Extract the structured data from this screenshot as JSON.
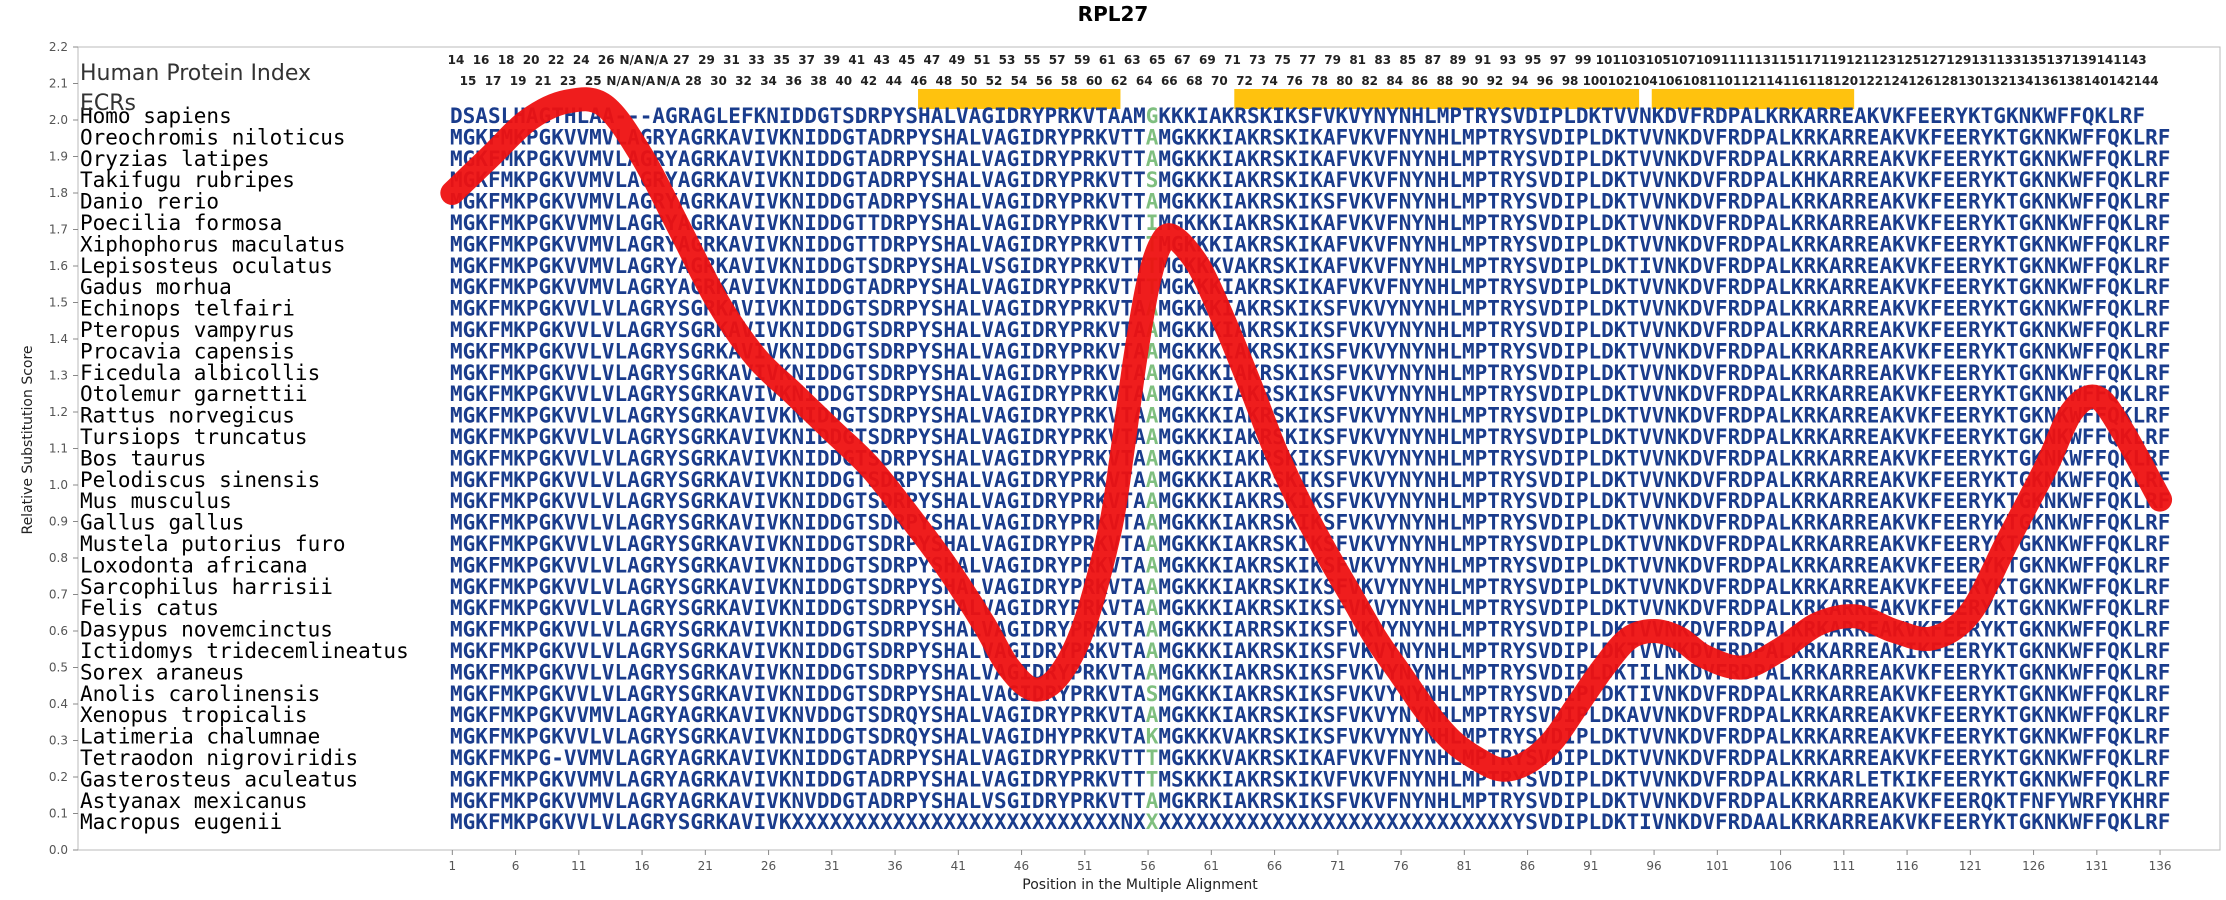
{
  "chart_data": {
    "type": "line",
    "title": "RPL27",
    "xlabel": "Position in the Multiple Alignment",
    "ylabel": "Relative Substitution Score",
    "ylim": [
      0,
      2.2
    ],
    "xlim": [
      1,
      136
    ],
    "y_ticks": [
      "0.0",
      "0.1",
      "0.2",
      "0.3",
      "0.4",
      "0.5",
      "0.6",
      "0.7",
      "0.8",
      "0.9",
      "1.0",
      "1.1",
      "1.2",
      "1.3",
      "1.4",
      "1.5",
      "1.6",
      "1.7",
      "1.8",
      "1.9",
      "2.0",
      "2.1",
      "2.2"
    ],
    "x_ticks": [
      1,
      6,
      11,
      16,
      21,
      26,
      31,
      36,
      41,
      46,
      51,
      56,
      61,
      66,
      71,
      76,
      81,
      86,
      91,
      96,
      101,
      106,
      111,
      116,
      121,
      126,
      131,
      136
    ],
    "series": [
      {
        "color": "#ee1111",
        "x": [
          1,
          4,
          7,
          10,
          13,
          16,
          19,
          22,
          25,
          28,
          31,
          34,
          37,
          40,
          43,
          45,
          47,
          49,
          51,
          53,
          54,
          55,
          56,
          57,
          58,
          60,
          62,
          64,
          66,
          68,
          70,
          72,
          74,
          76,
          78,
          80,
          82,
          84,
          86,
          88,
          90,
          92,
          94,
          96,
          98,
          100,
          103,
          106,
          109,
          112,
          115,
          118,
          121,
          124,
          127,
          129,
          131,
          133,
          136
        ],
        "y": [
          1.8,
          1.9,
          2.0,
          2.05,
          2.04,
          1.9,
          1.7,
          1.5,
          1.35,
          1.25,
          1.15,
          1.05,
          0.92,
          0.78,
          0.62,
          0.5,
          0.44,
          0.48,
          0.62,
          0.88,
          1.1,
          1.35,
          1.55,
          1.66,
          1.68,
          1.6,
          1.45,
          1.28,
          1.1,
          0.95,
          0.82,
          0.7,
          0.58,
          0.48,
          0.38,
          0.3,
          0.25,
          0.22,
          0.24,
          0.3,
          0.4,
          0.5,
          0.58,
          0.6,
          0.58,
          0.53,
          0.5,
          0.55,
          0.62,
          0.64,
          0.6,
          0.58,
          0.65,
          0.85,
          1.05,
          1.2,
          1.24,
          1.15,
          0.96
        ]
      }
    ]
  },
  "header": {
    "human_protein_index": "Human Protein Index",
    "ecrs": "ECRs"
  },
  "ecr_bars": [
    {
      "from": 38,
      "to": 53
    },
    {
      "from": 63,
      "to": 94
    },
    {
      "from": 96,
      "to": 111
    }
  ],
  "ecr_color": "#ffc20e",
  "top_row": [
    "14",
    "16",
    "18",
    "20",
    "22",
    "24",
    "26",
    "N/A",
    "N/A",
    "27",
    "29",
    "31",
    "33",
    "35",
    "37",
    "39",
    "41",
    "43",
    "45",
    "47",
    "49",
    "51",
    "53",
    "55",
    "57",
    "59",
    "61",
    "63",
    "65",
    "67",
    "69",
    "71",
    "73",
    "75",
    "77",
    "79",
    "81",
    "83",
    "85",
    "87",
    "89",
    "91",
    "93",
    "95",
    "97",
    "99",
    "101",
    "103",
    "105",
    "107",
    "109",
    "111",
    "113",
    "115",
    "117",
    "119",
    "121",
    "123",
    "125",
    "127",
    "129",
    "131",
    "133",
    "135",
    "137",
    "139",
    "141",
    "143"
  ],
  "bottom_row": [
    "15",
    "17",
    "19",
    "21",
    "23",
    "25",
    "N/A",
    "N/A",
    "N/A",
    "28",
    "30",
    "32",
    "34",
    "36",
    "38",
    "40",
    "42",
    "44",
    "46",
    "48",
    "50",
    "52",
    "54",
    "56",
    "58",
    "60",
    "62",
    "64",
    "66",
    "68",
    "70",
    "72",
    "74",
    "76",
    "78",
    "80",
    "82",
    "84",
    "86",
    "88",
    "90",
    "92",
    "94",
    "96",
    "98",
    "100",
    "102",
    "104",
    "106",
    "108",
    "110",
    "112",
    "114",
    "116",
    "118",
    "120",
    "122",
    "124",
    "126",
    "128",
    "130",
    "132",
    "134",
    "136",
    "138",
    "140",
    "142",
    "144"
  ],
  "alignment": [
    {
      "species": "Homo sapiens",
      "seq": "DSASLHAGTHLAA---AGRAGLEFKNIDDGTSDRPYSHALVAGIDRYPRKVTAAMGKKKIAKRSKIKSFVKVYNYNHLMPTRYSVDIPLDKTVVNKDVFRDPALKRKARREAKVKFEERYKTGKNKWFFQKLRF"
    },
    {
      "species": "Oreochromis niloticus",
      "seq": "MGKFMKPGKVVMVLAGRYAGRKAVIVKNIDDGTADRPYSHALVAGIDRYPRKVTTAMGKKKIAKRSKIKAFVKVFNYNHLMPTRYSVDIPLDKTVVNKDVFRDPALKRKARREAKVKFEERYKTGKNKWFFQKLRF"
    },
    {
      "species": "Oryzias latipes",
      "seq": "MGKFMKPGKVVMVLAGRYAGRKAVIVKNIDDGTADRPYSHALVAGIDRYPRKVTTAMGKKKIAKRSKIKAFVKVFNYNHLMPTRYSVDIPLDKTVVNKDVFRDPALKRKARREAKVKFEERYKTGKNKWFFQKLRF"
    },
    {
      "species": "Takifugu rubripes",
      "seq": "MGKFMKPGKVVMVLAGRYAGRKAVIVKNIDDGTADRPYSHALVAGIDRYPRKVTTSMGKKKIAKRSKIKAFVKVFNYNHLMPTRYSVDIPLDKTVVNKDVFRDPALKHKARREAKVKFEERYKTGKNKWFFQKLRF"
    },
    {
      "species": "Danio rerio",
      "seq": "MGKFMKPGKVVMVLAGRYAGRKAVIVKNIDDGTADRPYSHALVAGIDRYPRKVTTAMGKKKIAKRSKIKSFVKVFNYNHLMPTRYSVDIPLDKTVVNKDVFRDPALKRKARREAKVKFEERYKTGKNKWFFQKLRF"
    },
    {
      "species": "Poecilia formosa",
      "seq": "MGKFMKPGKVVMVLAGRYAGRKAVIVKNIDDGTTDRPYSHALVAGIDRYPRKVTTIMGKKKIAKRSKIKAFVKVFNYNHLMPTRYSVDIPLDKTVVNKDVFRDPALKRKARREAKVKFEERYKTGKNKWFFQKLRF"
    },
    {
      "species": "Xiphophorus maculatus",
      "seq": "MGKFMKPGKVVMVLAGRYAGRKAVIVKNIDDGTTDRPYSHALVAGIDRYPRKVTTTMGKKKIAKRSKIKAFVKVFNYNHLMPTRYSVDIPLDKTVVNKDVFRDPALKRKARREAKVKFEERYKTGKNKWFFQKLRF"
    },
    {
      "species": "Lepisosteus oculatus",
      "seq": "MGKFMKPGKVVMVLAGRYAGRKAVIVKNIDDGTSDRPYSHALVSGIDRYPRKVTTTMGKKKVAKRSKIKAFVKVFNYNHLMPTRYSVDIPLDKTIVNKDVFRDPALKRKARREAKVKFEERYKTGKNKWFFQKLRF"
    },
    {
      "species": "Gadus morhua",
      "seq": "MGKFMKPGKVVMVLAGRYAGRKAVIVKNIDDGTADRPYSHALVAGIDRYPRKVTTTMGKKKIAKRSKIKAFVKVFNYNHLMPTRYSVDIPLDKTVVNKDVFRDPALKRKARREAKVKFEERYKTGKNKWFFQKLRF"
    },
    {
      "species": "Echinops telfairi",
      "seq": "MGKFMKPGKVVLVLAGRYSGRKAVIVKNIDDGTSDRPYSHALVAGIDRYPRKVTAAMGKKKIAKRSKIKSFVKVYNYNHLMPTRYSVDIPLDKTVVNKDVFRDPALKRKARREAKVKFEERYKTGKNKWFFQKLRF"
    },
    {
      "species": "Pteropus vampyrus",
      "seq": "MGKFMKPGKVVLVLAGRYSGRKAVIVKNIDDGTSDRPYSHALVAGIDRYPRKVTAAMGKKKIAKRSKIKSFVKVYNYNHLMPTRYSVDIPLDKTVVNKDVFRDPALKRKARREAKVKFEERYKTGKNKWFFQKLRF"
    },
    {
      "species": "Procavia capensis",
      "seq": "MGKFMKPGKVVLVLAGRYSGRKAVIVKNIDDGTSDRPYSHALVAGIDRYPRKVTAAMGKKKIAKRSKIKSFVKVYNYNHLMPTRYSVDIPLDKTVVNKDVFRDPALKRKARREAKVKFEERYKTGKNKWFFQKLRF"
    },
    {
      "species": "Ficedula albicollis",
      "seq": "MGKFMKPGKVVLVLAGRYSGRKAVIVKNIDDGTSDRPYSHALVAGIDRYPRKVTAAMGKKKIAKRSKIKSFVKVYNYNHLMPTRYSVDIPLDKTVVNKDVFRDPALKRKARREAKVKFEERYKTGKNKWFFQKLRF"
    },
    {
      "species": "Otolemur garnettii",
      "seq": "MGKFMKPGKVVLVLAGRYSGRKAVIVKNIDDGTSDRPYSHALVAGIDRYPRKVTAAMGKKKIAKRSKIKSFVKVYNYNHLMPTRYSVDIPLDKTVVNKDVFRDPALKRKARREAKVKFEERYKTGKNKWFFQKLRF"
    },
    {
      "species": "Rattus norvegicus",
      "seq": "MGKFMKPGKVVLVLAGRYSGRKAVIVKNIDDGTSDRPYSHALVAGIDRYPRKVTAAMGKKKIAKRSKIKSFVKVYNYNHLMPTRYSVDIPLDKTVVNKDVFRDPALKRKARREAKVKFEERYKTGKNKWFFQKLRF"
    },
    {
      "species": "Tursiops truncatus",
      "seq": "MGKFMKPGKVVLVLAGRYSGRKAVIVKNIDDGTSDRPYSHALVAGIDRYPRKVTAAMGKKKIAKRSKIKSFVKVYNYNHLMPTRYSVDIPLDKTVVNKDVFRDPALKRKARREAKVKFEERYKTGKNKWFFQKLRF"
    },
    {
      "species": "Bos taurus",
      "seq": "MGKFMKPGKVVLVLAGRYSGRKAVIVKNIDDGTSDRPYSHALVAGIDRYPRKVTAAMGKKKIAKRSKIKSFVKVYNYNHLMPTRYSVDIPLDKTVVNKDVFRDPALKRKARREAKVKFEERYKTGKNKWFFQKLRF"
    },
    {
      "species": "Pelodiscus sinensis",
      "seq": "MGKFMKPGKVVLVLAGRYSGRKAVIVKNIDDGTSDRPYSHALVAGIDRYPRKVTAAMGKKKIAKRSKIKSFVKVYNYNHLMPTRYSVDIPLDKTVVNKDVFRDPALKRKARREAKVKFEERYKTGKNKWFFQKLRF"
    },
    {
      "species": "Mus musculus",
      "seq": "MGKFMKPGKVVLVLAGRYSGRKAVIVKNIDDGTSDRPYSHALVAGIDRYPRKVTAAMGKKKIAKRSKIKSFVKVYNYNHLMPTRYSVDIPLDKTVVNKDVFRDPALKRKARREAKVKFEERYKTGKNKWFFQKLRF"
    },
    {
      "species": "Gallus gallus",
      "seq": "MGKFMKPGKVVLVLAGRYSGRKAVIVKNIDDGTSDRPYSHALVAGIDRYPRKVTAAMGKKKIAKRSKIKSFVKVYNYNHLMPTRYSVDIPLDKTVVNKDVFRDPALKRKARREAKVKFEERYKTGKNKWFFQKLRF"
    },
    {
      "species": "Mustela putorius furo",
      "seq": "MGKFMKPGKVVLVLAGRYSGRKAVIVKNIDDGTSDRPYSHALVAGIDRYPRKVTAAMGKKKIAKRSKIKSFVKVYNYNHLMPTRYSVDIPLDKTVVNKDVFRDPALKRKARREAKVKFEERYKTGKNKWFFQKLRF"
    },
    {
      "species": "Loxodonta africana",
      "seq": "MGKFMKPGKVVLVLAGRYSGRKAVIVKNIDDGTSDRPYSHALVAGIDRYPRKVTAAMGKKKIAKRSKIKSFVKVYNYNHLMPTRYSVDIPLDKTVVNKDVFRDPALKRKARREAKVKFEERYKTGKNKWFFQKLRF"
    },
    {
      "species": "Sarcophilus harrisii",
      "seq": "MGKFMKPGKVVLVLAGRYSGRKAVIVKNIDDGTSDRPYSHALVAGIDRYPRKVTAAMGKKKIAKRSKIKSFVKVYNYNHLMPTRYSVDIPLDKTVVNKDVFRDPALKRKARREAKVKFEERYKTGKNKWFFQKLRF"
    },
    {
      "species": "Felis catus",
      "seq": "MGKFMKPGKVVLVLAGRYSGRKAVIVKNIDDGTSDRPYSHALVAGIDRYPRKVTAAMGKKKIAKRSKIKSFVKVYNYNHLMPTRYSVDIPLDKTVVNKDVFRDPALKRKARREAKVKFEERYKTGKNKWFFQKLRF"
    },
    {
      "species": "Dasypus novemcinctus",
      "seq": "MGKFMKPGKVVLVLAGRYSGRKAVIVKNIDDGTSDRPYSHALVAGIDRYPRKVTAAMGKKKIARRSKIKSFVKVYNYNHLMPTRYSVDIPLDKTVVNKDVFRDPALKRKARREAKVKFEERYKTGKNKWFFQKLRF"
    },
    {
      "species": "Ictidomys tridecemlineatus",
      "seq": "MGKFMKPGKVVLVLAGRYSGRKAVIVKNIDDGTSDRPYSHALVAGIDRYPRKVTAAMGKKKIAKRSKIKSFVKVYNYNHLMPTRYSVDIPLDKTVVNKDVFRDPALKRKARREAKIKFEERYKTGKNKWFFQKLRF"
    },
    {
      "species": "Sorex araneus",
      "seq": "MGKFMKPGKVVLVLAGRYSGRKAVIVKNIDDGTSDRPYSHALVAGIDRYPRKVTAAMGKKKIAKRSKIKSFVKVYNYNHLMPTRYSVDIPLDKTILNKDVFRDPALKRKARREAKVKFEERYKTGKNKWFFQKLRF"
    },
    {
      "species": "Anolis carolinensis",
      "seq": "MGKFMKPGKVVLVLAGRYSGRKAVIVKNIDDGTSDRPYSHALVAGIDRYPRKVTASMGKKKIAKRSKIKSFVKVYNYNHLMPTRYSVDIPLDKTIVNKDVFRDPALKRKARREAKVKFEERYKTGKNKWFFQKLRF"
    },
    {
      "species": "Xenopus tropicalis",
      "seq": "MGKFMKPGKVVMVLAGRYAGRKAVIVKNVDDGTSDRQYSHALVAGIDRYPRKVTAAMGKKKIAKRSKIKSFVKVYNYNHLMPTRYSVDIPLDKAVVNKDVFRDPALKRKARREAKVKFEERYKTGKNKWFFQKLRF"
    },
    {
      "species": "Latimeria chalumnae",
      "seq": "MGKFMKPGKVVLVLAGRYSGRKAVIVKNIDDGTSDRQYSHALVAGIDHYPRKVTAKMGKKKVAKRSKIKSFVKVYNYNHLMPTRYSVDIPLDKTVVNKDVFRDPALKRKARREAKVKFEERYKTGKNKWFFQKLRF"
    },
    {
      "species": "Tetraodon nigroviridis",
      "seq": "MGKFMKPG-VVMVLAGRYAGRKAVIVKNIDDGTADRPYSHALVAGIDRYPRKVTTTMGKKKVAKRSKIKAFVKVFNYNHLMPTRYSVDIPLDKTVVNKDVFRDPALKRKARREAKVKFEERYKTGKNKWFFQKLRF"
    },
    {
      "species": "Gasterosteus aculeatus",
      "seq": "MGKFMKPGKVVMVLAGRYAGRKAVIVKNIDDGTADRPYSHALVAGIDRYPRKVTTTMSKKKIAKRSKIKVFVKVFNYNHLMPTRYSVDIPLDKTVVNKDVFRDPALKRKARLETKIKFEERYKTGKNKWFFQKLRF"
    },
    {
      "species": "Astyanax mexicanus",
      "seq": "MGKFMKPGKVVMVLAGRYAGRKAVIVKNVDDGTADRPYSHALVSGIDRYPRKVTTAMGKRKIAKRSKIKSFVKVFNYNHLMPTRYSVDIPLDKTVVNKDVFRDPALKRKARREAKVKFEERQKTFNFYWRFYKHRF"
    },
    {
      "species": "Macropus eugenii",
      "seq": "MGKFMKPGKVVLVLAGRYSGRKAVIVKXXXXXXXXXXXXXXXXXXXXXXXXXXNXXXXXXXXXXXXXXXXXXXXXXXXXXXXXXYSVDIPLDKTIVNKDVFRDAALKRKARREAKVKFEERYKTGKNKWFFQKLRF"
    }
  ],
  "highlight_column": 55,
  "highlight_color": "#7fbf7f",
  "seq_color": "#1a3c8c"
}
